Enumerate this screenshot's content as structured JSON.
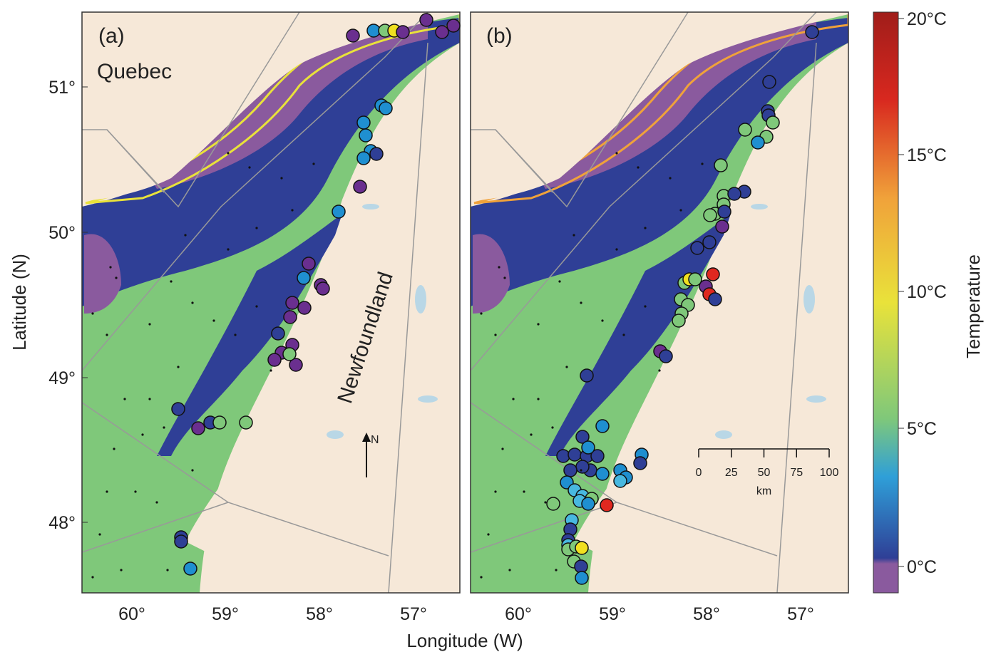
{
  "panels": [
    {
      "label": "(a)"
    },
    {
      "label": "(b)"
    }
  ],
  "region_labels": {
    "quebec": "Quebec",
    "newfoundland": "Newfoundland"
  },
  "north_arrow": "N",
  "axes": {
    "xlabel": "Longitude (W)",
    "ylabel": "Latitude (N)",
    "x_ticks": [
      "60°",
      "59°",
      "58°",
      "57°"
    ],
    "y_ticks": [
      "51°",
      "50°",
      "49°",
      "48°"
    ]
  },
  "scale_bar": {
    "ticks": [
      "0",
      "25",
      "50",
      "75",
      "100"
    ],
    "unit": "km"
  },
  "colorbar": {
    "title": "Temperature",
    "tick_labels": [
      "20°C",
      "15°C",
      "10°C",
      "5°C",
      "0°C"
    ],
    "stops": [
      "#8a5a9e",
      "#2f3f96",
      "#2f9fd8",
      "#7fc87a",
      "#e9e23a",
      "#f0a23a",
      "#d8281f",
      "#a01d1a"
    ]
  },
  "colors": {
    "land": "#f6e8d8",
    "cold_water": "#2f3f96",
    "deep_purple": "#8a5a9e",
    "warm_shelf": "#7fc87a",
    "lakes": "#b9d7e6"
  }
}
